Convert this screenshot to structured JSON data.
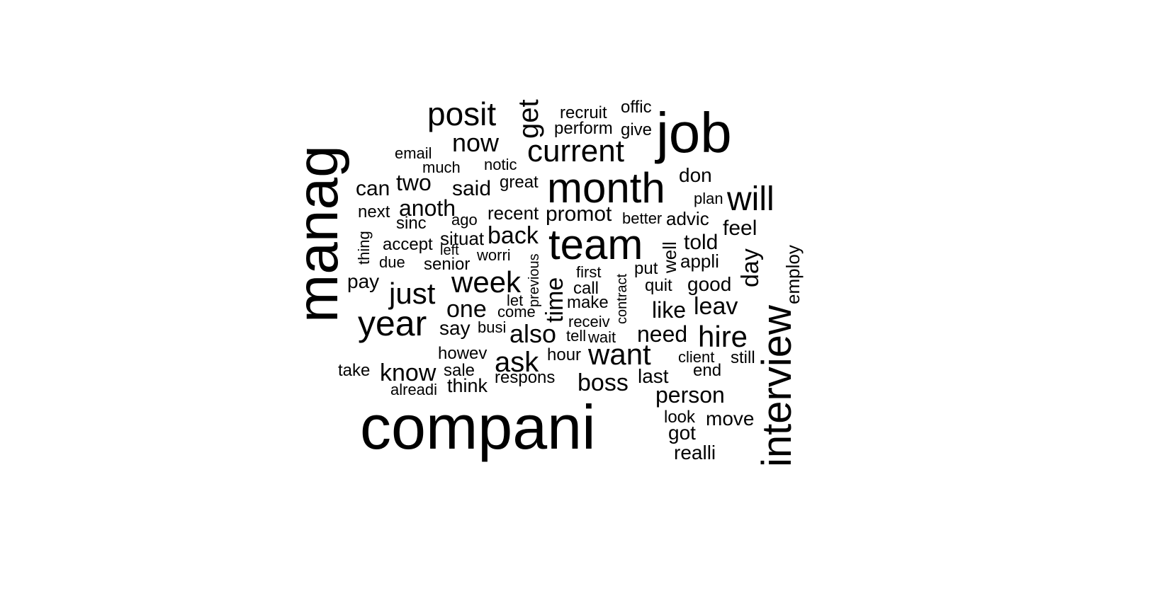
{
  "words": [
    "manag",
    "compani",
    "job",
    "interview",
    "month",
    "team",
    "year",
    "posit",
    "current",
    "week",
    "just",
    "will",
    "hire",
    "want",
    "get",
    "now",
    "time",
    "also",
    "ask",
    "one",
    "boss",
    "two",
    "can",
    "said",
    "anoth",
    "back",
    "day",
    "know",
    "person",
    "need",
    "leav",
    "like",
    "told",
    "good",
    "feel",
    "promot",
    "move",
    "realli",
    "got",
    "say",
    "pay",
    "think",
    "last",
    "end",
    "look",
    "appli",
    "well",
    "employ",
    "recruit",
    "offic",
    "perform",
    "give",
    "email",
    "much",
    "notic",
    "great",
    "don",
    "plan",
    "next",
    "sinc",
    "ago",
    "recent",
    "better",
    "advic",
    "accept",
    "situat",
    "left",
    "worri",
    "thing",
    "due",
    "senior",
    "first",
    "put",
    "call",
    "quit",
    "make",
    "contract",
    "let",
    "come",
    "previous",
    "receiv",
    "tell",
    "wait",
    "busi",
    "howev",
    "hour",
    "client",
    "still",
    "take",
    "sale",
    "respons",
    "alreadi"
  ]
}
